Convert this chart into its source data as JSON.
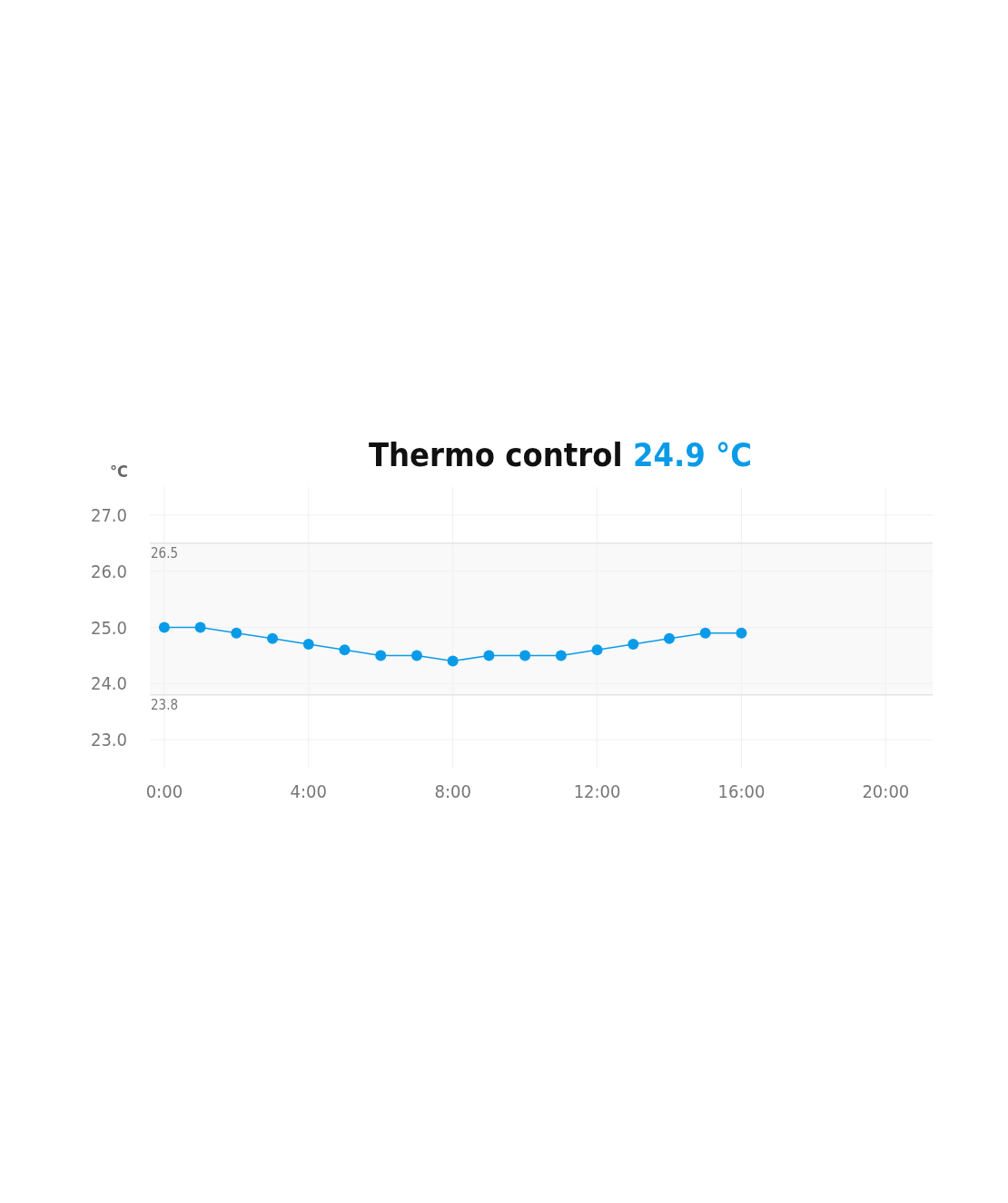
{
  "chart_data": {
    "type": "line",
    "title": "Thermo control",
    "annotations": [
      "24.9 °C"
    ],
    "ylabel": "°C",
    "x": [
      0,
      1,
      2,
      3,
      4,
      5,
      6,
      7,
      8,
      9,
      10,
      11,
      12,
      13,
      14,
      15,
      16
    ],
    "series": [
      {
        "color": "#0a9be8",
        "values": [
          25.0,
          25.0,
          24.9,
          24.8,
          24.7,
          24.6,
          24.5,
          24.5,
          24.4,
          24.5,
          24.5,
          24.5,
          24.6,
          24.7,
          24.8,
          24.9,
          24.9
        ]
      }
    ],
    "xlim": [
      -0.4,
      21.3
    ],
    "ylim": [
      22.5,
      27.5
    ],
    "xticks": [
      {
        "value": 0,
        "label": "0:00"
      },
      {
        "value": 4,
        "label": "4:00"
      },
      {
        "value": 8,
        "label": "8:00"
      },
      {
        "value": 12,
        "label": "12:00"
      },
      {
        "value": 16,
        "label": "16:00"
      },
      {
        "value": 20,
        "label": "20:00"
      }
    ],
    "yticks": [
      {
        "value": 23,
        "label": "23.0"
      },
      {
        "value": 24,
        "label": "24.0"
      },
      {
        "value": 25,
        "label": "25.0"
      },
      {
        "value": 26,
        "label": "26.0"
      },
      {
        "value": 27,
        "label": "27.0"
      }
    ],
    "bands": [
      {
        "axis": "y",
        "from": 23.8,
        "to": 26.5,
        "color": "#f9f9f9"
      }
    ],
    "ref_lines": [
      {
        "axis": "y",
        "value": 26.5,
        "label": "26.5",
        "color": "#e4e4e4"
      },
      {
        "axis": "y",
        "value": 23.8,
        "label": "23.8",
        "color": "#e4e4e4"
      }
    ],
    "grid": true,
    "marker": "circle",
    "line_style": "solid"
  }
}
